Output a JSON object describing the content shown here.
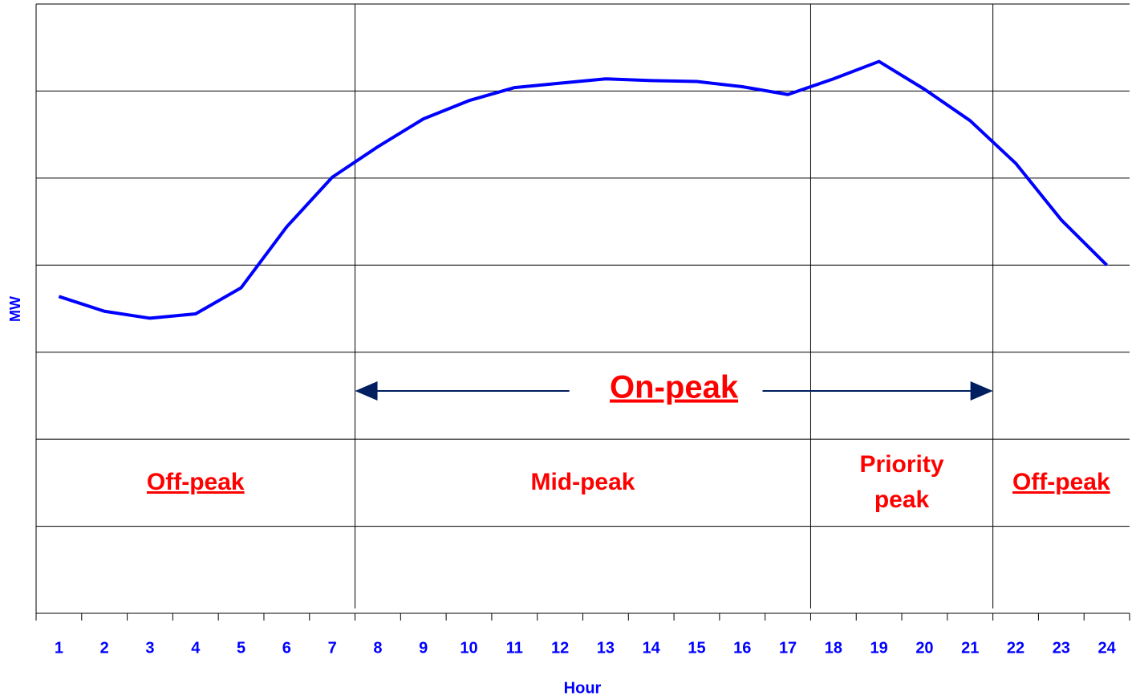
{
  "chart_data": {
    "type": "line",
    "xlabel": "Hour",
    "ylabel": "MW",
    "categories": [
      "1",
      "2",
      "3",
      "4",
      "5",
      "6",
      "7",
      "8",
      "9",
      "10",
      "11",
      "12",
      "13",
      "14",
      "15",
      "16",
      "17",
      "18",
      "19",
      "20",
      "21",
      "22",
      "23",
      "24"
    ],
    "series": [
      {
        "color": "#0000ff",
        "values": [
          3.64,
          3.47,
          3.39,
          3.44,
          3.74,
          4.44,
          5.01,
          5.36,
          5.68,
          5.89,
          6.04,
          6.09,
          6.14,
          6.12,
          6.11,
          6.05,
          5.96,
          6.14,
          6.34,
          6.02,
          5.66,
          5.17,
          4.52,
          4.0
        ]
      }
    ],
    "ylim": [
      0,
      7
    ],
    "yticks": [
      0,
      1,
      2,
      3,
      4,
      5,
      6,
      7
    ],
    "grid": true,
    "periods": [
      {
        "label": "Off-peak",
        "start": 1,
        "end": 7,
        "underline": true
      },
      {
        "label": "Mid-peak",
        "start": 8,
        "end": 17,
        "underline": false
      },
      {
        "label": "Priority peak",
        "start": 18,
        "end": 21,
        "underline": false
      },
      {
        "label": "Off-peak",
        "start": 22,
        "end": 24,
        "underline": true
      }
    ],
    "annotation": {
      "text": "On-peak",
      "start": 8,
      "end": 21,
      "underline": true
    }
  }
}
